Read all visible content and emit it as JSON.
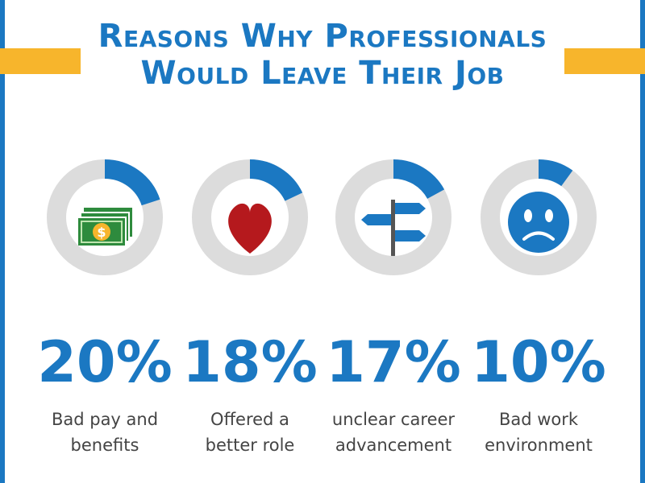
{
  "chart_data": {
    "type": "donut",
    "title": "Reasons Why Professionals Would Leave Their Job",
    "categories": [
      "Bad pay and benefits",
      "Offered a better role",
      "unclear career advancement",
      "Bad work environment"
    ],
    "values": [
      20,
      18,
      17,
      10
    ],
    "value_labels": [
      "20%",
      "18%",
      "17%",
      "10%"
    ],
    "color": "#1b78c2",
    "track_color": "#dcdcdc"
  }
}
